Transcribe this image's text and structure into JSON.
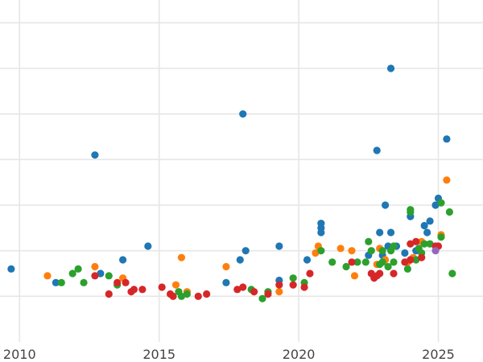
{
  "chart_data": {
    "type": "scatter",
    "title": "",
    "xlabel": "",
    "ylabel": "",
    "x_unit": "year",
    "xlim": [
      2009.3,
      2026.6
    ],
    "ylim": [
      0,
      7.5
    ],
    "xticks": [
      2010,
      2015,
      2020,
      2025
    ],
    "xtick_labels": [
      "2010",
      "2015",
      "2020",
      "2025"
    ],
    "yticks": [
      1,
      2,
      3,
      4,
      5,
      6,
      7
    ],
    "ytick_labels": [],
    "grid": true,
    "legend": "none",
    "series": [
      {
        "color": "#1f77b4",
        "points": [
          [
            2009.7,
            1.6
          ],
          [
            2011.3,
            1.3
          ],
          [
            2012.7,
            4.1
          ],
          [
            2012.9,
            1.5
          ],
          [
            2013.7,
            1.8
          ],
          [
            2014.6,
            2.1
          ],
          [
            2017.4,
            1.3
          ],
          [
            2017.9,
            1.8
          ],
          [
            2018.1,
            2.0
          ],
          [
            2018.0,
            5.0
          ],
          [
            2019.3,
            1.35
          ],
          [
            2019.3,
            2.1
          ],
          [
            2020.3,
            1.8
          ],
          [
            2020.8,
            2.6
          ],
          [
            2020.8,
            2.5
          ],
          [
            2020.8,
            2.4
          ],
          [
            2022.5,
            1.9
          ],
          [
            2022.9,
            2.4
          ],
          [
            2023.1,
            3.0
          ],
          [
            2023.2,
            2.1
          ],
          [
            2023.3,
            6.0
          ],
          [
            2022.8,
            4.2
          ],
          [
            2023.3,
            2.4
          ],
          [
            2023.5,
            2.1
          ],
          [
            2023.8,
            1.95
          ],
          [
            2024.0,
            2.75
          ],
          [
            2024.5,
            2.55
          ],
          [
            2024.6,
            2.4
          ],
          [
            2024.7,
            2.65
          ],
          [
            2024.9,
            3.0
          ],
          [
            2025.0,
            3.15
          ],
          [
            2025.3,
            4.45
          ],
          [
            2023.0,
            1.9
          ],
          [
            2024.2,
            2.0
          ]
        ]
      },
      {
        "color": "#ff7f0e",
        "points": [
          [
            2011.0,
            1.45
          ],
          [
            2012.7,
            1.65
          ],
          [
            2013.7,
            1.4
          ],
          [
            2015.6,
            1.25
          ],
          [
            2015.8,
            1.85
          ],
          [
            2016.0,
            1.1
          ],
          [
            2017.4,
            1.65
          ],
          [
            2019.3,
            1.1
          ],
          [
            2020.6,
            1.95
          ],
          [
            2020.7,
            2.1
          ],
          [
            2021.5,
            2.05
          ],
          [
            2021.9,
            2.0
          ],
          [
            2022.0,
            1.45
          ],
          [
            2022.8,
            1.7
          ],
          [
            2022.9,
            2.05
          ],
          [
            2023.1,
            1.8
          ],
          [
            2023.9,
            1.75
          ],
          [
            2024.1,
            1.85
          ],
          [
            2024.4,
            2.2
          ],
          [
            2025.1,
            2.35
          ],
          [
            2025.3,
            3.55
          ]
        ]
      },
      {
        "color": "#2ca02c",
        "points": [
          [
            2011.5,
            1.3
          ],
          [
            2011.9,
            1.5
          ],
          [
            2012.1,
            1.6
          ],
          [
            2012.3,
            1.3
          ],
          [
            2013.2,
            1.45
          ],
          [
            2013.5,
            1.25
          ],
          [
            2015.7,
            1.1
          ],
          [
            2015.8,
            1.0
          ],
          [
            2016.0,
            1.05
          ],
          [
            2018.3,
            1.15
          ],
          [
            2018.7,
            0.95
          ],
          [
            2018.9,
            1.1
          ],
          [
            2019.8,
            1.4
          ],
          [
            2020.2,
            1.3
          ],
          [
            2020.8,
            2.0
          ],
          [
            2021.2,
            1.75
          ],
          [
            2021.7,
            1.65
          ],
          [
            2022.1,
            1.75
          ],
          [
            2022.4,
            1.75
          ],
          [
            2022.5,
            2.2
          ],
          [
            2022.6,
            2.0
          ],
          [
            2022.9,
            1.7
          ],
          [
            2023.0,
            1.75
          ],
          [
            2023.2,
            1.65
          ],
          [
            2023.4,
            2.1
          ],
          [
            2023.3,
            2.0
          ],
          [
            2023.4,
            1.75
          ],
          [
            2023.9,
            1.6
          ],
          [
            2024.0,
            2.9
          ],
          [
            2024.2,
            1.8
          ],
          [
            2024.3,
            2.05
          ],
          [
            2024.4,
            1.95
          ],
          [
            2024.5,
            2.15
          ],
          [
            2024.7,
            2.15
          ],
          [
            2025.1,
            3.05
          ],
          [
            2025.1,
            2.3
          ],
          [
            2025.4,
            2.85
          ],
          [
            2025.5,
            1.5
          ],
          [
            2024.0,
            2.85
          ],
          [
            2023.0,
            2.0
          ]
        ]
      },
      {
        "color": "#d62728",
        "points": [
          [
            2012.7,
            1.45
          ],
          [
            2013.2,
            1.05
          ],
          [
            2013.5,
            1.3
          ],
          [
            2013.8,
            1.3
          ],
          [
            2014.0,
            1.1
          ],
          [
            2014.1,
            1.15
          ],
          [
            2014.4,
            1.15
          ],
          [
            2015.1,
            1.2
          ],
          [
            2015.4,
            1.05
          ],
          [
            2015.5,
            1.0
          ],
          [
            2016.4,
            1.0
          ],
          [
            2016.7,
            1.05
          ],
          [
            2017.8,
            1.15
          ],
          [
            2018.0,
            1.2
          ],
          [
            2018.4,
            1.1
          ],
          [
            2018.9,
            1.05
          ],
          [
            2019.3,
            1.25
          ],
          [
            2019.8,
            1.25
          ],
          [
            2020.2,
            1.2
          ],
          [
            2020.4,
            1.5
          ],
          [
            2021.9,
            1.75
          ],
          [
            2022.6,
            1.5
          ],
          [
            2022.7,
            1.4
          ],
          [
            2022.8,
            1.45
          ],
          [
            2022.9,
            1.5
          ],
          [
            2023.4,
            1.5
          ],
          [
            2023.8,
            1.75
          ],
          [
            2024.0,
            2.15
          ],
          [
            2024.0,
            1.8
          ],
          [
            2024.2,
            2.2
          ],
          [
            2024.4,
            1.85
          ],
          [
            2024.9,
            2.1
          ],
          [
            2025.0,
            2.1
          ]
        ]
      },
      {
        "color": "#9467bd",
        "points": [
          [
            2024.9,
            2.0
          ]
        ]
      }
    ]
  }
}
